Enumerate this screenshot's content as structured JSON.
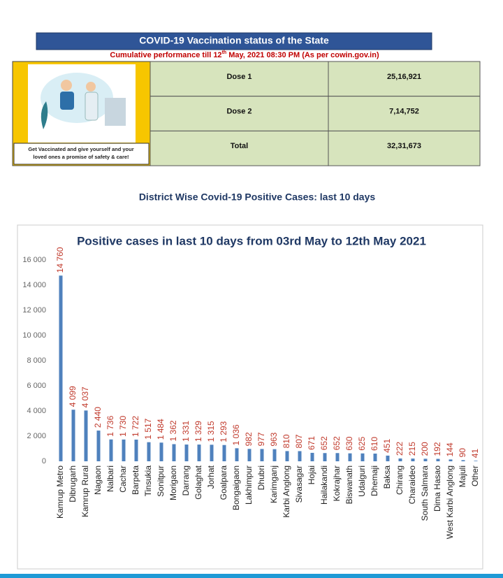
{
  "header": {
    "title": "COVID-19 Vaccination status of the State",
    "subtitle_parts": [
      "Cumulative performance till 12",
      "th",
      " May, 2021 08:30 PM (As per cowin.gov.in)"
    ]
  },
  "poster": {
    "caption_lines": [
      "Get Vaccinated and give yourself and your",
      "loved ones a promise of safety & care!"
    ]
  },
  "table": {
    "rows": [
      [
        "Dose 1",
        "25,16,921"
      ],
      [
        "Dose 2",
        "7,14,752"
      ],
      [
        "Total",
        "32,31,673"
      ]
    ]
  },
  "section_heading": "District Wise Covid-19 Positive Cases: last 10 days",
  "chart_data": {
    "type": "bar",
    "title": "Positive cases in last 10 days from 03rd May to 12th May 2021",
    "categories": [
      "Kamrup Metro",
      "Dibrugarh",
      "Kamrup Rural",
      "Nagaon",
      "Nalbari",
      "Cachar",
      "Barpeta",
      "Tinsukia",
      "Sonitpur",
      "Morigaon",
      "Darrang",
      "Golaghat",
      "Jorhat",
      "Goalpara",
      "Bongaigaon",
      "Lakhimpur",
      "Dhubri",
      "Karimganj",
      "Karbi Anglong",
      "Sivasagar",
      "Hojai",
      "Hailakandi",
      "Kokrajhar",
      "Biswanath",
      "Udalguri",
      "Dhemaji",
      "Baksa",
      "Chirang",
      "Charaideo",
      "South Salmara",
      "Dima Hasao",
      "West Karbi Anglong",
      "Majuli",
      "Other"
    ],
    "values": [
      14760,
      4099,
      4037,
      2440,
      1736,
      1730,
      1722,
      1517,
      1484,
      1362,
      1331,
      1329,
      1315,
      1293,
      1036,
      982,
      977,
      963,
      810,
      807,
      671,
      652,
      652,
      630,
      625,
      610,
      451,
      222,
      215,
      200,
      192,
      144,
      90,
      41
    ],
    "value_labels": [
      "14 760",
      "4 099",
      "4 037",
      "2 440",
      "1 736",
      "1 730",
      "1 722",
      "1 517",
      "1 484",
      "1 362",
      "1 331",
      "1 329",
      "1 315",
      "1 293",
      "1 036",
      "982",
      "977",
      "963",
      "810",
      "807",
      "671",
      "652",
      "652",
      "630",
      "625",
      "610",
      "451",
      "222",
      "215",
      "200",
      "192",
      "144",
      "90",
      "41"
    ],
    "color": "#4f81bd",
    "label_color": "#c0392b",
    "ylim": [
      0,
      16000
    ],
    "yticks": [
      0,
      {
        "value": 2000,
        "label": "2 000"
      },
      {
        "value": 4000,
        "label": "4 000"
      },
      {
        "value": 6000,
        "label": "6 000"
      },
      {
        "value": 8000,
        "label": "8 000"
      },
      {
        "value": 10000,
        "label": "10 000"
      },
      {
        "value": 12000,
        "label": "12 000"
      },
      {
        "value": 14000,
        "label": "14 000"
      },
      {
        "value": 16000,
        "label": "16 000"
      }
    ],
    "grid": false
  }
}
